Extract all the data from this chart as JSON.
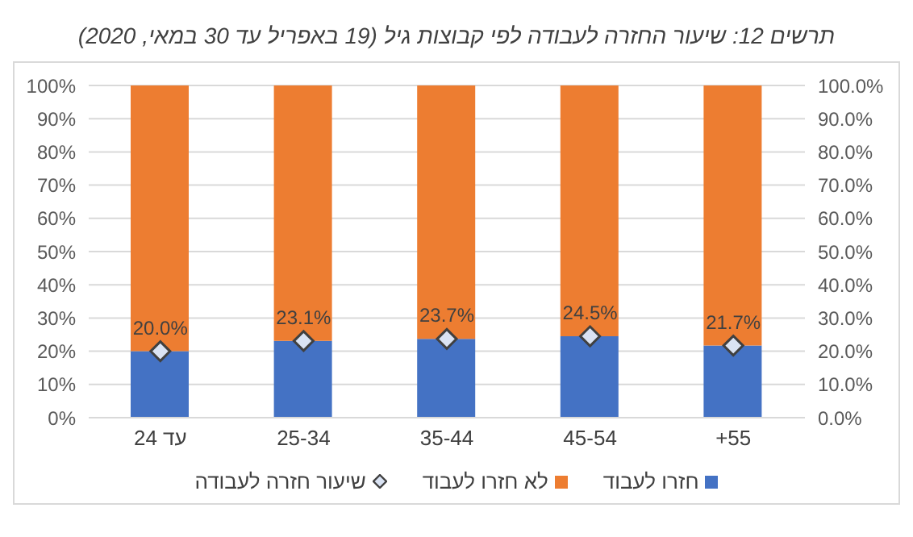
{
  "chart_data": {
    "type": "bar",
    "title": "תרשים 12: שיעור החזרה לעבודה  לפי קבוצות גיל (19 באפריל עד 30 במאי, 2020)",
    "categories": [
      "עד 24",
      "25-34",
      "35-44",
      "45-54",
      "+55"
    ],
    "stacked": true,
    "series": [
      {
        "name": "חזרו לעבוד",
        "color": "#4472c4",
        "values": [
          20.0,
          23.1,
          23.7,
          24.5,
          21.7
        ]
      },
      {
        "name": "לא חזרו לעבוד",
        "color": "#ed7d31",
        "values": [
          80.0,
          76.9,
          76.3,
          75.5,
          78.3
        ]
      },
      {
        "name": "שיעור חזרה לעבודה",
        "type": "scatter",
        "axis": "y2",
        "marker": "diamond",
        "color": "#dae3f3",
        "values": [
          20.0,
          23.1,
          23.7,
          24.5,
          21.7
        ],
        "value_labels": [
          "20.0%",
          "23.1%",
          "23.7%",
          "24.5%",
          "21.7%"
        ]
      }
    ],
    "ylim": [
      0,
      100
    ],
    "yticks": [
      {
        "value": 0,
        "label": "0%"
      },
      {
        "value": 10,
        "label": "10%"
      },
      {
        "value": 20,
        "label": "20%"
      },
      {
        "value": 30,
        "label": "30%"
      },
      {
        "value": 40,
        "label": "40%"
      },
      {
        "value": 50,
        "label": "50%"
      },
      {
        "value": 60,
        "label": "60%"
      },
      {
        "value": 70,
        "label": "70%"
      },
      {
        "value": 80,
        "label": "80%"
      },
      {
        "value": 90,
        "label": "90%"
      },
      {
        "value": 100,
        "label": "100%"
      }
    ],
    "y2lim": [
      0,
      100
    ],
    "y2ticks": [
      {
        "value": 0,
        "label": "0.0%"
      },
      {
        "value": 10,
        "label": "10.0%"
      },
      {
        "value": 20,
        "label": "20.0%"
      },
      {
        "value": 30,
        "label": "30.0%"
      },
      {
        "value": 40,
        "label": "40.0%"
      },
      {
        "value": 50,
        "label": "50.0%"
      },
      {
        "value": 60,
        "label": "60.0%"
      },
      {
        "value": 70,
        "label": "70.0%"
      },
      {
        "value": 80,
        "label": "80.0%"
      },
      {
        "value": 90,
        "label": "90.0%"
      },
      {
        "value": 100,
        "label": "100.0%"
      }
    ],
    "grid": "y",
    "legend": "bottom"
  }
}
